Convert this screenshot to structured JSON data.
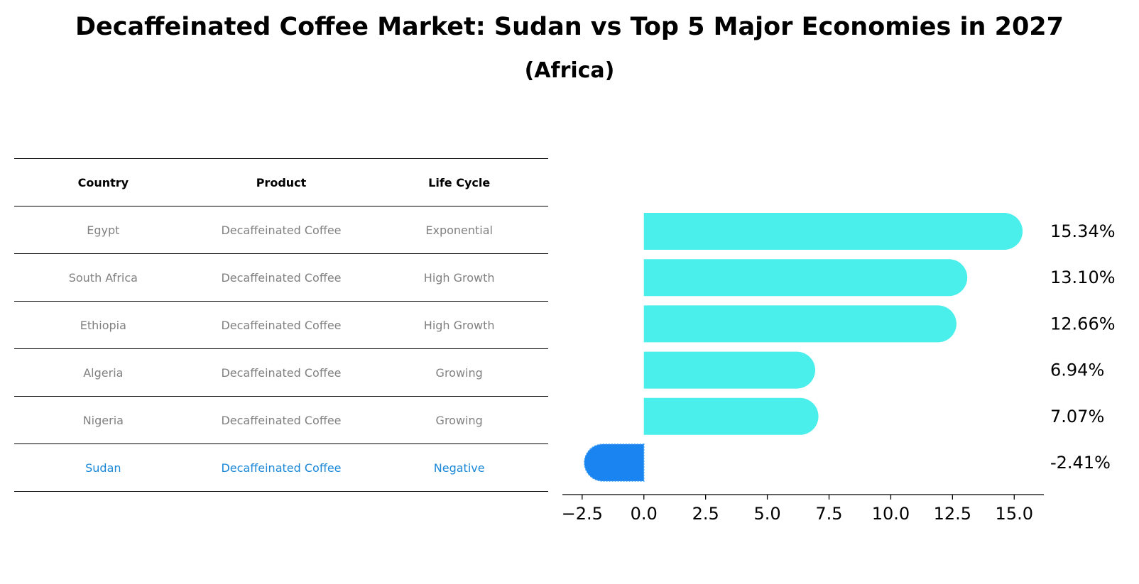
{
  "title": "Decaffeinated Coffee Market: Sudan vs Top 5 Major Economies in 2027",
  "subtitle": "(Africa)",
  "table": {
    "headers": [
      "Country",
      "Product",
      "Life Cycle"
    ],
    "rows": [
      {
        "country": "Egypt",
        "product": "Decaffeinated Coffee",
        "life_cycle": "Exponential"
      },
      {
        "country": "South Africa",
        "product": "Decaffeinated Coffee",
        "life_cycle": "High Growth"
      },
      {
        "country": "Ethiopia",
        "product": "Decaffeinated Coffee",
        "life_cycle": "High Growth"
      },
      {
        "country": "Algeria",
        "product": "Decaffeinated Coffee",
        "life_cycle": "Growing"
      },
      {
        "country": "Nigeria",
        "product": "Decaffeinated Coffee",
        "life_cycle": "Growing"
      },
      {
        "country": "Sudan",
        "product": "Decaffeinated Coffee",
        "life_cycle": "Negative"
      }
    ]
  },
  "chart_data": {
    "type": "bar",
    "orientation": "horizontal",
    "categories": [
      "Egypt",
      "South Africa",
      "Ethiopia",
      "Algeria",
      "Nigeria",
      "Sudan"
    ],
    "values": [
      15.34,
      13.1,
      12.66,
      6.94,
      7.07,
      -2.41
    ],
    "value_labels": [
      "15.34%",
      "13.10%",
      "12.66%",
      "6.94%",
      "7.07%",
      "-2.41%"
    ],
    "highlight": "Sudan",
    "xlim": [
      -3.3,
      16.2
    ],
    "xticks": [
      -2.5,
      0.0,
      2.5,
      5.0,
      7.5,
      10.0,
      12.5,
      15.0
    ],
    "xtick_labels": [
      "−2.5",
      "0.0",
      "2.5",
      "5.0",
      "7.5",
      "10.0",
      "12.5",
      "15.0"
    ],
    "colors": {
      "bar": "#4aeeea",
      "highlight": "#1a84f0"
    }
  }
}
